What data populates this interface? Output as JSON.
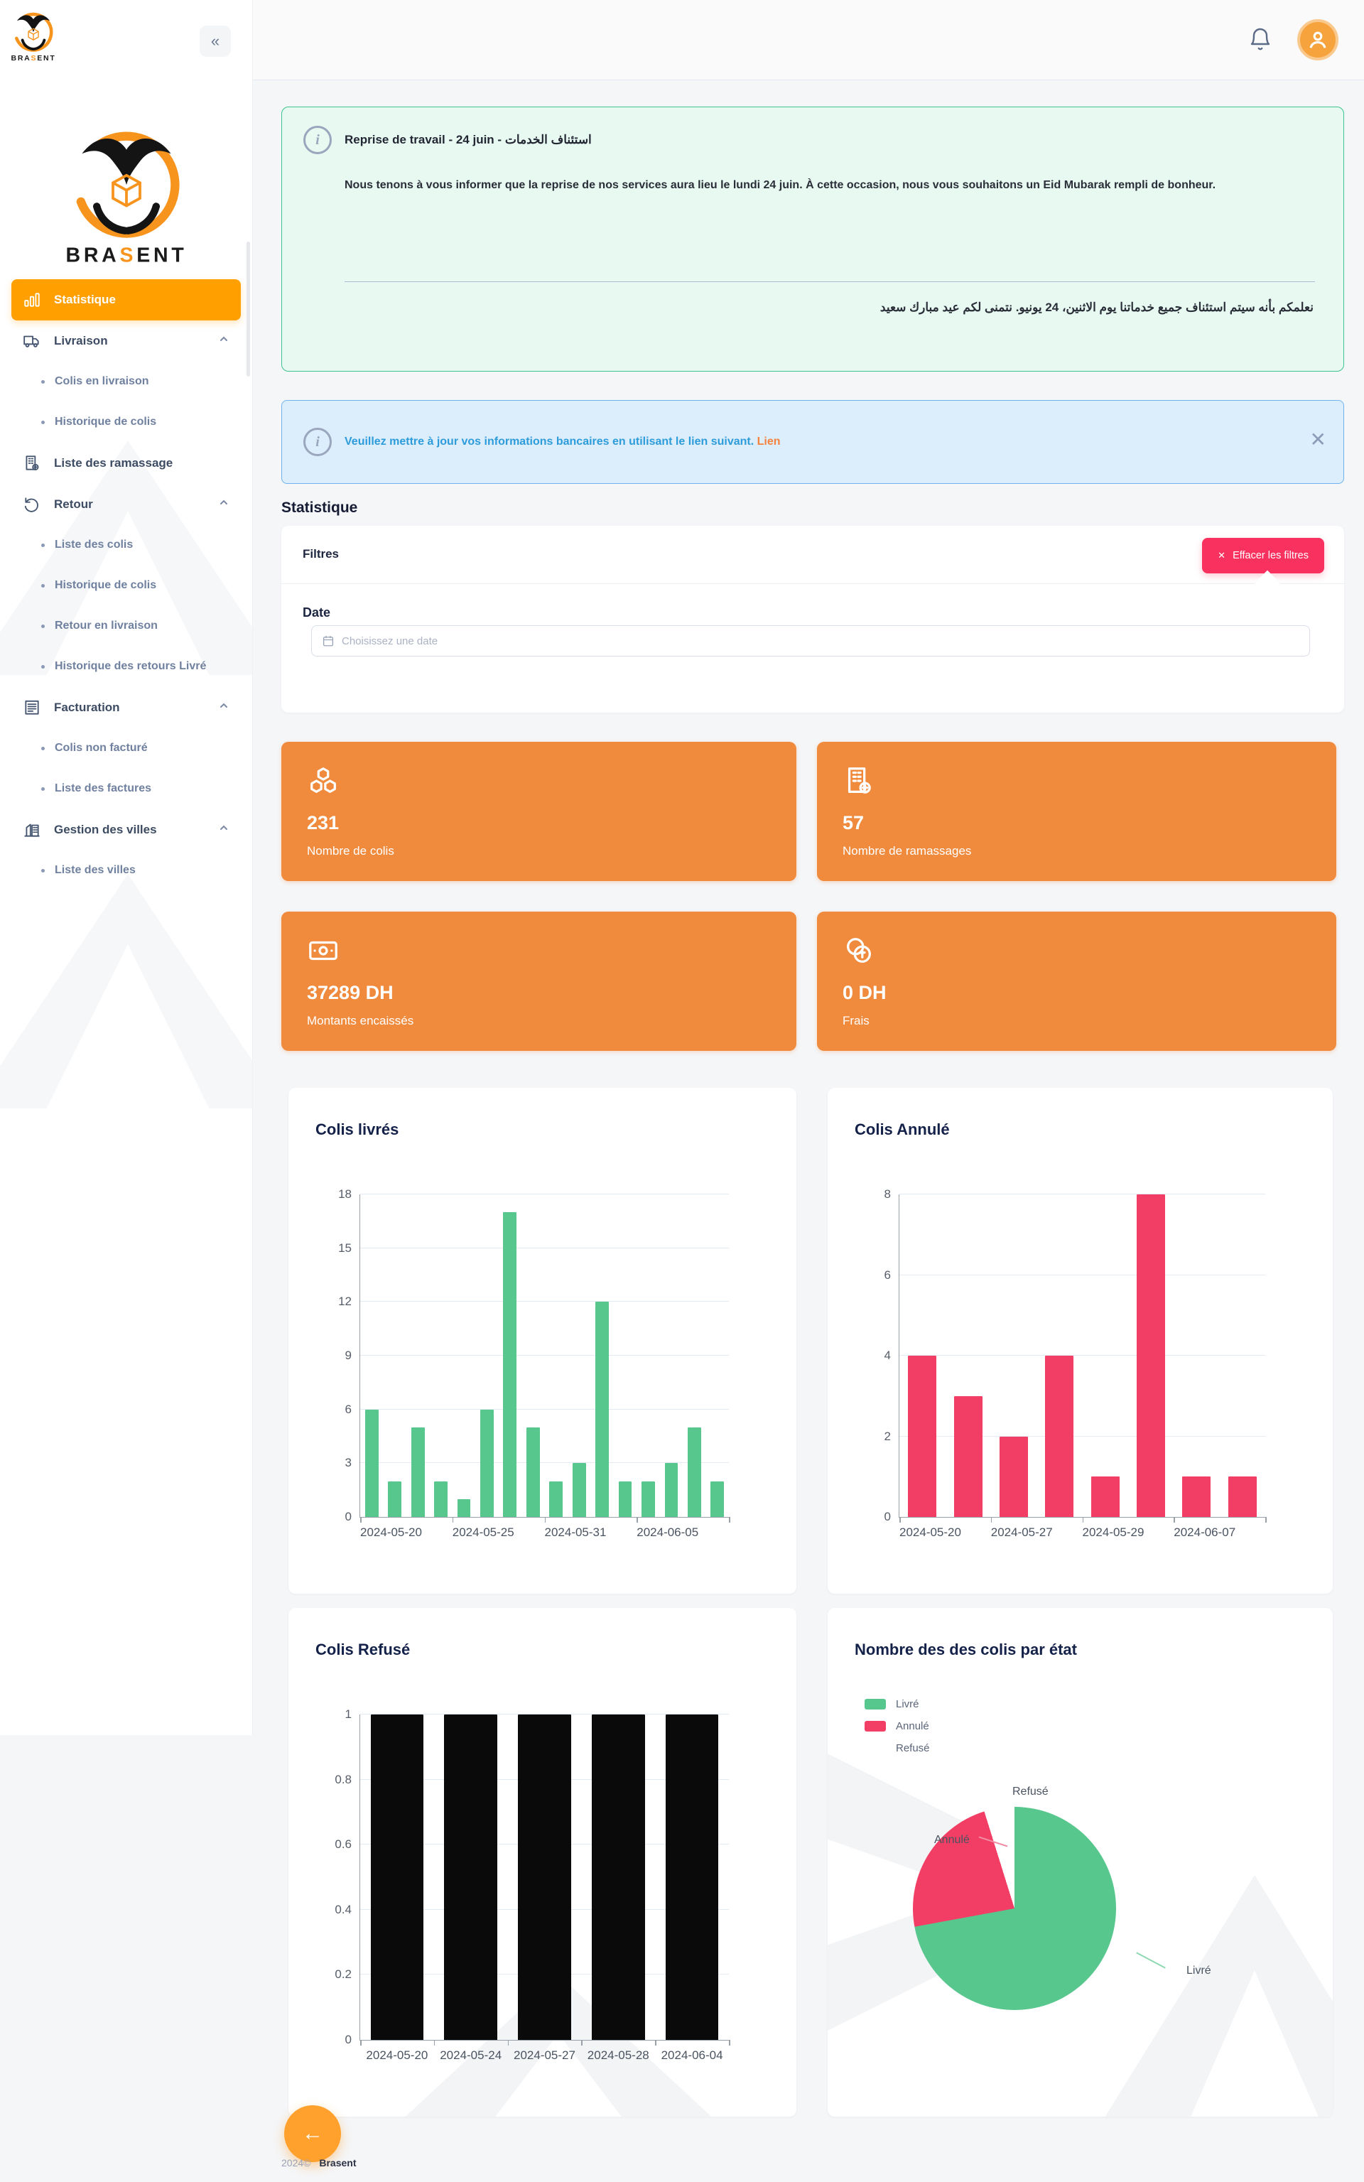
{
  "brand": {
    "name": "BRASENT",
    "footer_year": "2024©",
    "footer_name": "Brasent"
  },
  "sidebar": {
    "collapse_icon": "«",
    "items": [
      {
        "type": "item",
        "key": "statistique",
        "label": "Statistique",
        "icon": "bar-chart-icon",
        "active": true,
        "expandable": false
      },
      {
        "type": "item",
        "key": "livraison",
        "label": "Livraison",
        "icon": "truck-icon",
        "active": false,
        "expandable": true
      },
      {
        "type": "sub",
        "key": "colis-en-livraison",
        "label": "Colis en livraison"
      },
      {
        "type": "sub",
        "key": "historique-de-colis",
        "label": "Historique de colis"
      },
      {
        "type": "item",
        "key": "liste-des-ramassage",
        "label": "Liste des ramassage",
        "icon": "building-plus-icon",
        "active": false,
        "expandable": false
      },
      {
        "type": "item",
        "key": "retour",
        "label": "Retour",
        "icon": "rotate-icon",
        "active": false,
        "expandable": true
      },
      {
        "type": "sub",
        "key": "liste-des-colis",
        "label": "Liste des colis"
      },
      {
        "type": "sub",
        "key": "historique-de-colis-retour",
        "label": "Historique de colis"
      },
      {
        "type": "sub",
        "key": "retour-en-livraison",
        "label": "Retour en livraison"
      },
      {
        "type": "sub",
        "key": "historique-des-retours-livre",
        "label": "Historique des retours Livré"
      },
      {
        "type": "item",
        "key": "facturation",
        "label": "Facturation",
        "icon": "invoice-icon",
        "active": false,
        "expandable": true
      },
      {
        "type": "sub",
        "key": "colis-non-facture",
        "label": "Colis non facturé"
      },
      {
        "type": "sub",
        "key": "liste-des-factures",
        "label": "Liste des factures"
      },
      {
        "type": "item",
        "key": "gestion-des-villes",
        "label": "Gestion des villes",
        "icon": "city-icon",
        "active": false,
        "expandable": true
      },
      {
        "type": "sub",
        "key": "liste-des-villes",
        "label": "Liste des villes"
      }
    ]
  },
  "banners": {
    "announcement": {
      "title": "Reprise de travail - 24 juin - استئناف الخدمات",
      "body": "Nous tenons à vous informer que la reprise de nos services aura lieu le lundi 24 juin. À cette occasion, nous vous souhaitons un Eid Mubarak rempli de bonheur.",
      "arabic": "نعلمكم بأنه سيتم استئناف جميع خدماتنا يوم الاثنين، 24 يونيو. نتمنى لكم عيد مبارك سعيد"
    },
    "bank": {
      "text": "Veuillez mettre à jour vos informations bancaires en utilisant le lien suivant.",
      "link_label": "Lien",
      "close_icon": "✕"
    }
  },
  "page": {
    "section_title": "Statistique"
  },
  "filters": {
    "title": "Filtres",
    "clear_label": "Effacer les filtres",
    "clear_icon": "✕",
    "date_label": "Date",
    "date_placeholder": "Choisissez une date"
  },
  "stats": [
    {
      "icon": "boxes-icon",
      "value": "231",
      "label": "Nombre de colis"
    },
    {
      "icon": "building-icon",
      "value": "57",
      "label": "Nombre de ramassages"
    },
    {
      "icon": "banknote-icon",
      "value": "37289 DH",
      "label": "Montants encaissés"
    },
    {
      "icon": "coins-icon",
      "value": "0 DH",
      "label": "Frais"
    }
  ],
  "colors": {
    "accent_orange": "#ffa000",
    "card_orange": "#f08a3d",
    "green": "#57c78e",
    "pink": "#f23e64",
    "black": "#0a0a0a"
  },
  "chart_data": [
    {
      "type": "bar",
      "title": "Colis livrés",
      "color": "#57c78e",
      "values": [
        6,
        2,
        5,
        2,
        1,
        6,
        17,
        5,
        2,
        3,
        12,
        2,
        2,
        3,
        5,
        2
      ],
      "x_ticks": [
        "2024-05-20",
        "2024-05-25",
        "2024-05-31",
        "2024-06-05"
      ],
      "yticks": [
        0,
        3,
        6,
        9,
        12,
        15,
        18
      ],
      "ylim": [
        0,
        18
      ],
      "grid": true,
      "bar_width_pct": 58
    },
    {
      "type": "bar",
      "title": "Colis Annulé",
      "color": "#f23e64",
      "values": [
        4,
        3,
        2,
        4,
        1,
        8,
        1,
        1
      ],
      "x_ticks": [
        "2024-05-20",
        "2024-05-27",
        "2024-05-29",
        "2024-06-07"
      ],
      "yticks": [
        0,
        2,
        4,
        6,
        8
      ],
      "ylim": [
        0,
        8
      ],
      "grid": true,
      "bar_width_pct": 62
    },
    {
      "type": "bar",
      "title": "Colis Refusé",
      "color": "#0a0a0a",
      "values": [
        1,
        1,
        1,
        1,
        1
      ],
      "x_ticks": [
        "2024-05-20",
        "2024-05-24",
        "2024-05-27",
        "2024-05-28",
        "2024-06-04"
      ],
      "yticks": [
        0,
        0.2,
        0.4,
        0.6,
        0.8,
        1
      ],
      "ylim": [
        0,
        1
      ],
      "grid": true,
      "bar_width_pct": 72
    },
    {
      "type": "pie",
      "title": "Nombre des des colis par état",
      "labels": [
        "Livré",
        "Annulé",
        "Refusé"
      ],
      "values": [
        75,
        24,
        5
      ],
      "colors": [
        "#57c78e",
        "#f23e64",
        "#ffffff"
      ],
      "legend_position": "top-left"
    }
  ]
}
